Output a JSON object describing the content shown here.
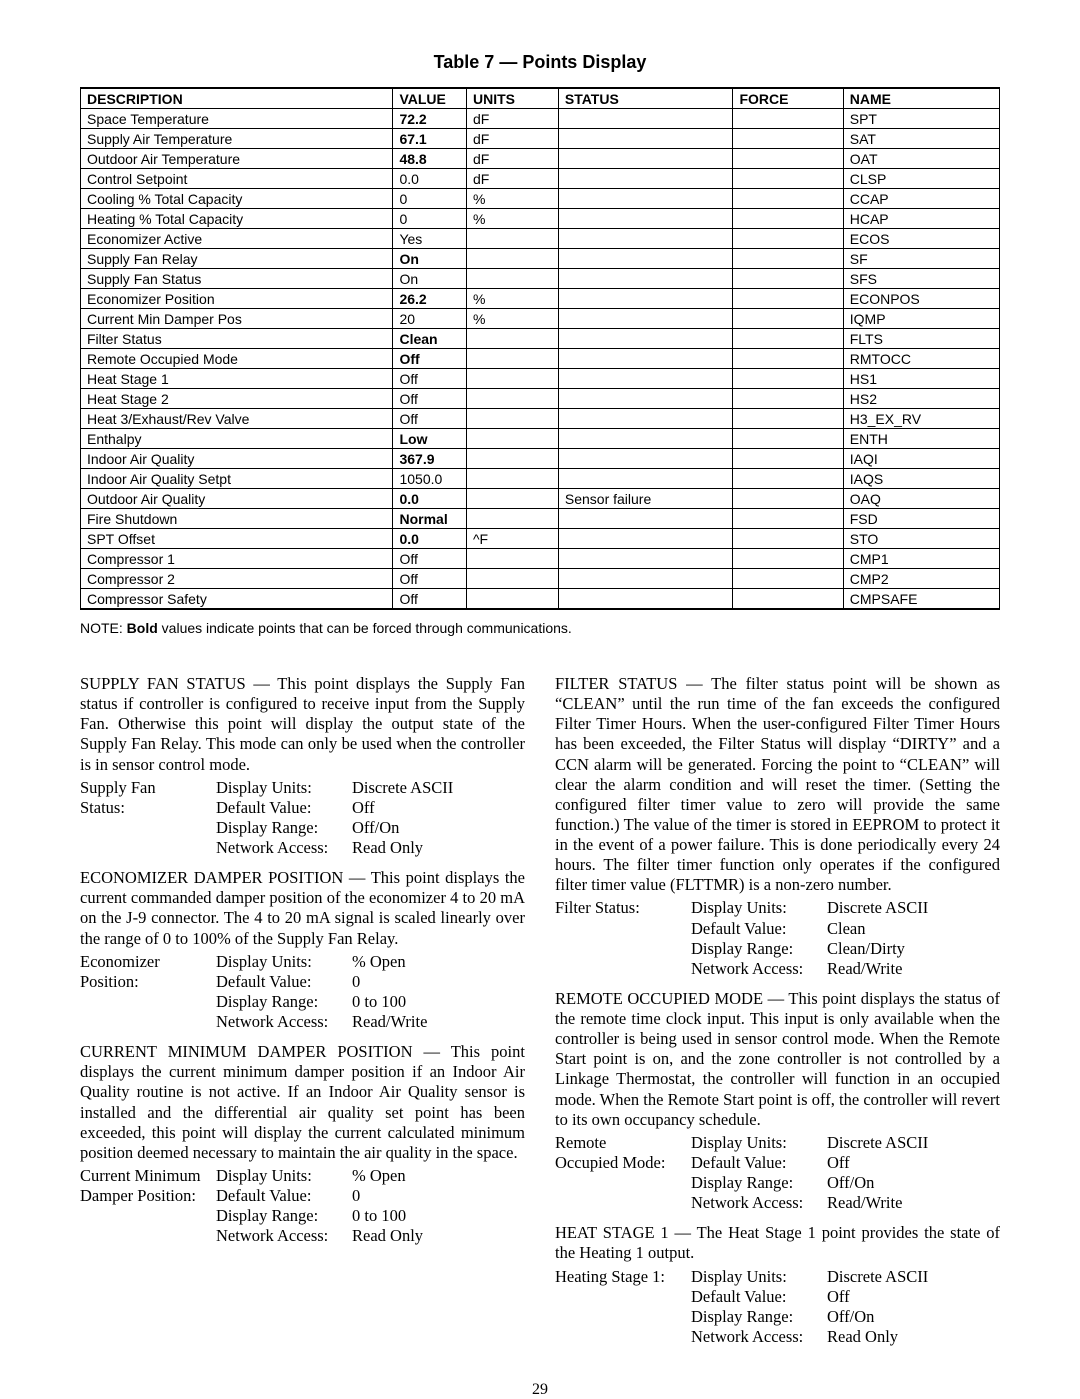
{
  "table_title": "Table 7 — Points Display",
  "columns": [
    "DESCRIPTION",
    "VALUE",
    "UNITS",
    "STATUS",
    "FORCE",
    "NAME"
  ],
  "rows": [
    {
      "desc": "Space Temperature",
      "value": "72.2",
      "bold": true,
      "units": "dF",
      "status": "",
      "force": "",
      "name": "SPT"
    },
    {
      "desc": "Supply Air Temperature",
      "value": "67.1",
      "bold": true,
      "units": "dF",
      "status": "",
      "force": "",
      "name": "SAT"
    },
    {
      "desc": "Outdoor Air Temperature",
      "value": "48.8",
      "bold": true,
      "units": "dF",
      "status": "",
      "force": "",
      "name": "OAT"
    },
    {
      "desc": "Control Setpoint",
      "value": "0.0",
      "bold": false,
      "units": "dF",
      "status": "",
      "force": "",
      "name": "CLSP"
    },
    {
      "desc": "Cooling % Total Capacity",
      "value": "0",
      "bold": false,
      "units": "%",
      "status": "",
      "force": "",
      "name": "CCAP"
    },
    {
      "desc": "Heating % Total Capacity",
      "value": "0",
      "bold": false,
      "units": "%",
      "status": "",
      "force": "",
      "name": "HCAP"
    },
    {
      "desc": "Economizer Active",
      "value": "Yes",
      "bold": false,
      "units": "",
      "status": "",
      "force": "",
      "name": "ECOS"
    },
    {
      "desc": "Supply Fan Relay",
      "value": "On",
      "bold": true,
      "units": "",
      "status": "",
      "force": "",
      "name": "SF"
    },
    {
      "desc": "Supply Fan Status",
      "value": "On",
      "bold": false,
      "units": "",
      "status": "",
      "force": "",
      "name": "SFS"
    },
    {
      "desc": "Economizer Position",
      "value": "26.2",
      "bold": true,
      "units": "%",
      "status": "",
      "force": "",
      "name": "ECONPOS"
    },
    {
      "desc": "Current Min Damper Pos",
      "value": "20",
      "bold": false,
      "units": "%",
      "status": "",
      "force": "",
      "name": "IQMP"
    },
    {
      "desc": "Filter Status",
      "value": "Clean",
      "bold": true,
      "units": "",
      "status": "",
      "force": "",
      "name": "FLTS"
    },
    {
      "desc": "Remote Occupied Mode",
      "value": "Off",
      "bold": true,
      "units": "",
      "status": "",
      "force": "",
      "name": "RMTOCC"
    },
    {
      "desc": "Heat Stage 1",
      "value": "Off",
      "bold": false,
      "units": "",
      "status": "",
      "force": "",
      "name": "HS1"
    },
    {
      "desc": "Heat Stage 2",
      "value": "Off",
      "bold": false,
      "units": "",
      "status": "",
      "force": "",
      "name": "HS2"
    },
    {
      "desc": "Heat 3/Exhaust/Rev Valve",
      "value": "Off",
      "bold": false,
      "units": "",
      "status": "",
      "force": "",
      "name": "H3_EX_RV"
    },
    {
      "desc": "Enthalpy",
      "value": "Low",
      "bold": true,
      "units": "",
      "status": "",
      "force": "",
      "name": "ENTH"
    },
    {
      "desc": "Indoor Air Quality",
      "value": "367.9",
      "bold": true,
      "units": "",
      "status": "",
      "force": "",
      "name": "IAQI"
    },
    {
      "desc": "Indoor Air Quality Setpt",
      "value": "1050.0",
      "bold": false,
      "units": "",
      "status": "",
      "force": "",
      "name": "IAQS"
    },
    {
      "desc": "Outdoor Air Quality",
      "value": "0.0",
      "bold": true,
      "units": "",
      "status": "Sensor failure",
      "force": "",
      "name": "OAQ"
    },
    {
      "desc": "Fire Shutdown",
      "value": "Normal",
      "bold": true,
      "units": "",
      "status": "",
      "force": "",
      "name": "FSD"
    },
    {
      "desc": "SPT Offset",
      "value": "0.0",
      "bold": true,
      "units": "^F",
      "status": "",
      "force": "",
      "name": "STO"
    },
    {
      "desc": "Compressor 1",
      "value": "Off",
      "bold": false,
      "units": "",
      "status": "",
      "force": "",
      "name": "CMP1"
    },
    {
      "desc": "Compressor 2",
      "value": "Off",
      "bold": false,
      "units": "",
      "status": "",
      "force": "",
      "name": "CMP2"
    },
    {
      "desc": "Compressor Safety",
      "value": "Off",
      "bold": false,
      "units": "",
      "status": "",
      "force": "",
      "name": "CMPSAFE"
    }
  ],
  "note_prefix": "NOTE: ",
  "note_bold": "Bold",
  "note_rest": " values indicate points that can be forced through communications.",
  "left": {
    "p1_lead": "SUPPLY FAN STATUS",
    "p1": " — This point displays the Supply Fan status if controller is configured to receive input from the Supply Fan. Otherwise this point will display the output state of the Supply Fan Relay. This mode can only be used when the controller is in sensor control mode.",
    "sfs": {
      "label_l1": "Supply Fan",
      "label_l2": "Status:",
      "du_lbl": "Display Units:",
      "du": "Discrete ASCII",
      "dv_lbl": "Default Value:",
      "dv": "Off",
      "dr_lbl": "Display Range:",
      "dr": "Off/On",
      "na_lbl": "Network Access:",
      "na": "Read Only"
    },
    "p2_lead": "ECONOMIZER DAMPER POSITION",
    "p2": " — This point displays the current commanded damper position of the economizer 4 to 20 mA on the J-9 connector. The 4 to 20 mA signal is scaled linearly over the range of 0 to 100% of the Supply Fan Relay.",
    "eco": {
      "label_l1": "Economizer",
      "label_l2": "Position:",
      "du_lbl": "Display Units:",
      "du": "% Open",
      "dv_lbl": "Default Value:",
      "dv": "0",
      "dr_lbl": "Display Range:",
      "dr": "0 to 100",
      "na_lbl": "Network Access:",
      "na": "Read/Write"
    },
    "p3_lead": "CURRENT MINIMUM DAMPER POSITION",
    "p3": " — This point displays the current minimum damper position if an Indoor Air Quality routine is not active. If an Indoor Air Quality sensor is installed and the differential air quality set point has been exceeded, this point will display the current calculated minimum position deemed necessary to maintain the air quality in the space.",
    "cmd": {
      "label_l1": "Current Minimum",
      "label_l2": "Damper Position:",
      "du_lbl": "Display Units:",
      "du": "% Open",
      "dv_lbl": "Default Value:",
      "dv": "0",
      "dr_lbl": "Display Range:",
      "dr": "0 to 100",
      "na_lbl": "Network Access:",
      "na": "Read Only"
    }
  },
  "right": {
    "p1_lead": "FILTER STATUS",
    "p1": " — The filter status point will be shown as “CLEAN” until the run time of the fan exceeds the configured Filter Timer Hours. When the user-configured Filter Timer Hours has been exceeded, the Filter Status will display “DIRTY” and a CCN alarm will be generated. Forcing the point to “CLEAN” will clear the alarm condition and will reset the timer. (Setting the configured filter timer value to zero will provide the same function.) The value of the timer is stored in EEPROM to protect it in the event of a power failure. This is done periodically every 24 hours. The filter timer function only operates if the configured filter timer value (FLTTMR) is a non-zero number.",
    "flt": {
      "label": "Filter Status:",
      "du_lbl": "Display Units:",
      "du": "Discrete ASCII",
      "dv_lbl": "Default Value:",
      "dv": "Clean",
      "dr_lbl": "Display Range:",
      "dr": "Clean/Dirty",
      "na_lbl": "Network Access:",
      "na": "Read/Write"
    },
    "p2_lead": "REMOTE OCCUPIED MODE",
    "p2": " — This point displays the status of the remote time clock input. This input is only available when the controller is being used in sensor control mode. When the Remote Start point is on, and the zone controller is not controlled by a Linkage Thermostat, the controller will function in an occupied mode. When the Remote Start point is off, the controller will revert to its own occupancy schedule.",
    "rmt": {
      "label_l1": "Remote",
      "label_l2": "Occupied Mode:",
      "du_lbl": "Display Units:",
      "du": "Discrete ASCII",
      "dv_lbl": "Default Value:",
      "dv": "Off",
      "dr_lbl": "Display Range:",
      "dr": "Off/On",
      "na_lbl": "Network Access:",
      "na": "Read/Write"
    },
    "p3_lead": "HEAT STAGE 1",
    "p3": " — The Heat Stage 1 point provides the state of the Heating 1 output.",
    "hs1": {
      "label": "Heating Stage 1:",
      "du_lbl": "Display Units:",
      "du": "Discrete ASCII",
      "dv_lbl": "Default Value:",
      "dv": "Off",
      "dr_lbl": "Display Range:",
      "dr": "Off/On",
      "na_lbl": "Network Access:",
      "na": "Read Only"
    }
  },
  "page_number": "29"
}
